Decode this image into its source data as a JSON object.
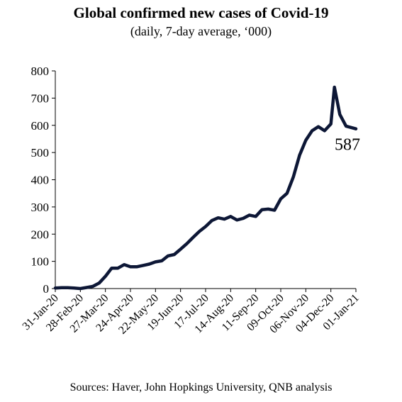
{
  "chart_data": {
    "type": "line",
    "title": "Global confirmed new cases of Covid-19",
    "subtitle": "(daily, 7-day average, ‘000)",
    "source": "Sources: Haver, John Hopkings University, QNB analysis",
    "xlabel": "",
    "ylabel": "",
    "ylim": [
      0,
      800
    ],
    "yticks": [
      0,
      100,
      200,
      300,
      400,
      500,
      600,
      700,
      800
    ],
    "xticks": [
      "31-Jan-20",
      "28-Feb-20",
      "27-Mar-20",
      "24-Apr-20",
      "22-May-20",
      "19-Jun-20",
      "17-Jul-20",
      "14-Aug-20",
      "11-Sep-20",
      "09-Oct-20",
      "06-Nov-20",
      "04-Dec-20",
      "01-Jan-21"
    ],
    "grid": false,
    "legend": "none",
    "line_color": "#0d1736",
    "end_label": "587",
    "series": [
      {
        "values": [
          [
            "31-Jan-20",
            2
          ],
          [
            "07-Feb-20",
            3
          ],
          [
            "14-Feb-20",
            3
          ],
          [
            "21-Feb-20",
            2
          ],
          [
            "28-Feb-20",
            0
          ],
          [
            "06-Mar-20",
            4
          ],
          [
            "13-Mar-20",
            8
          ],
          [
            "20-Mar-20",
            20
          ],
          [
            "27-Mar-20",
            45
          ],
          [
            "03-Apr-20",
            75
          ],
          [
            "10-Apr-20",
            75
          ],
          [
            "17-Apr-20",
            88
          ],
          [
            "24-Apr-20",
            80
          ],
          [
            "01-May-20",
            80
          ],
          [
            "08-May-20",
            85
          ],
          [
            "15-May-20",
            90
          ],
          [
            "22-May-20",
            98
          ],
          [
            "29-May-20",
            102
          ],
          [
            "05-Jun-20",
            120
          ],
          [
            "12-Jun-20",
            125
          ],
          [
            "19-Jun-20",
            145
          ],
          [
            "26-Jun-20",
            165
          ],
          [
            "03-Jul-20",
            188
          ],
          [
            "10-Jul-20",
            210
          ],
          [
            "17-Jul-20",
            228
          ],
          [
            "24-Jul-20",
            250
          ],
          [
            "31-Jul-20",
            260
          ],
          [
            "07-Aug-20",
            255
          ],
          [
            "14-Aug-20",
            265
          ],
          [
            "21-Aug-20",
            252
          ],
          [
            "28-Aug-20",
            258
          ],
          [
            "04-Sep-20",
            270
          ],
          [
            "11-Sep-20",
            265
          ],
          [
            "18-Sep-20",
            290
          ],
          [
            "25-Sep-20",
            292
          ],
          [
            "02-Oct-20",
            288
          ],
          [
            "09-Oct-20",
            330
          ],
          [
            "16-Oct-20",
            350
          ],
          [
            "23-Oct-20",
            410
          ],
          [
            "30-Oct-20",
            490
          ],
          [
            "06-Nov-20",
            545
          ],
          [
            "13-Nov-20",
            580
          ],
          [
            "20-Nov-20",
            595
          ],
          [
            "27-Nov-20",
            580
          ],
          [
            "04-Dec-20",
            605
          ],
          [
            "08-Dec-20",
            740
          ],
          [
            "14-Dec-20",
            640
          ],
          [
            "21-Dec-20",
            597
          ],
          [
            "01-Jan-21",
            587
          ]
        ]
      }
    ]
  }
}
